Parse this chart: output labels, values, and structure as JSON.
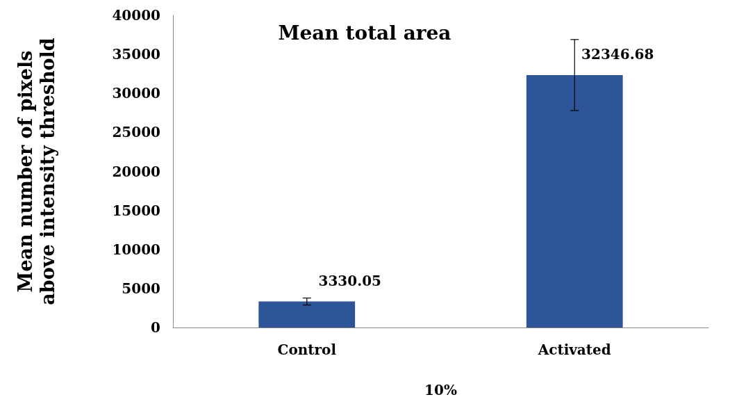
{
  "chart_data": {
    "type": "bar",
    "title": "Mean total area",
    "xlabel": "10%",
    "ylabel": "Mean number of pixels\nabove intensity threshold",
    "categories": [
      "Control",
      "Activated"
    ],
    "values": [
      3330.05,
      32346.68
    ],
    "errors": [
      450,
      4550
    ],
    "color": "#2e5597",
    "data_labels": true,
    "ylim": [
      0,
      40000
    ],
    "yticks": [
      0,
      5000,
      10000,
      15000,
      20000,
      25000,
      30000,
      35000,
      40000
    ],
    "grid": false
  }
}
